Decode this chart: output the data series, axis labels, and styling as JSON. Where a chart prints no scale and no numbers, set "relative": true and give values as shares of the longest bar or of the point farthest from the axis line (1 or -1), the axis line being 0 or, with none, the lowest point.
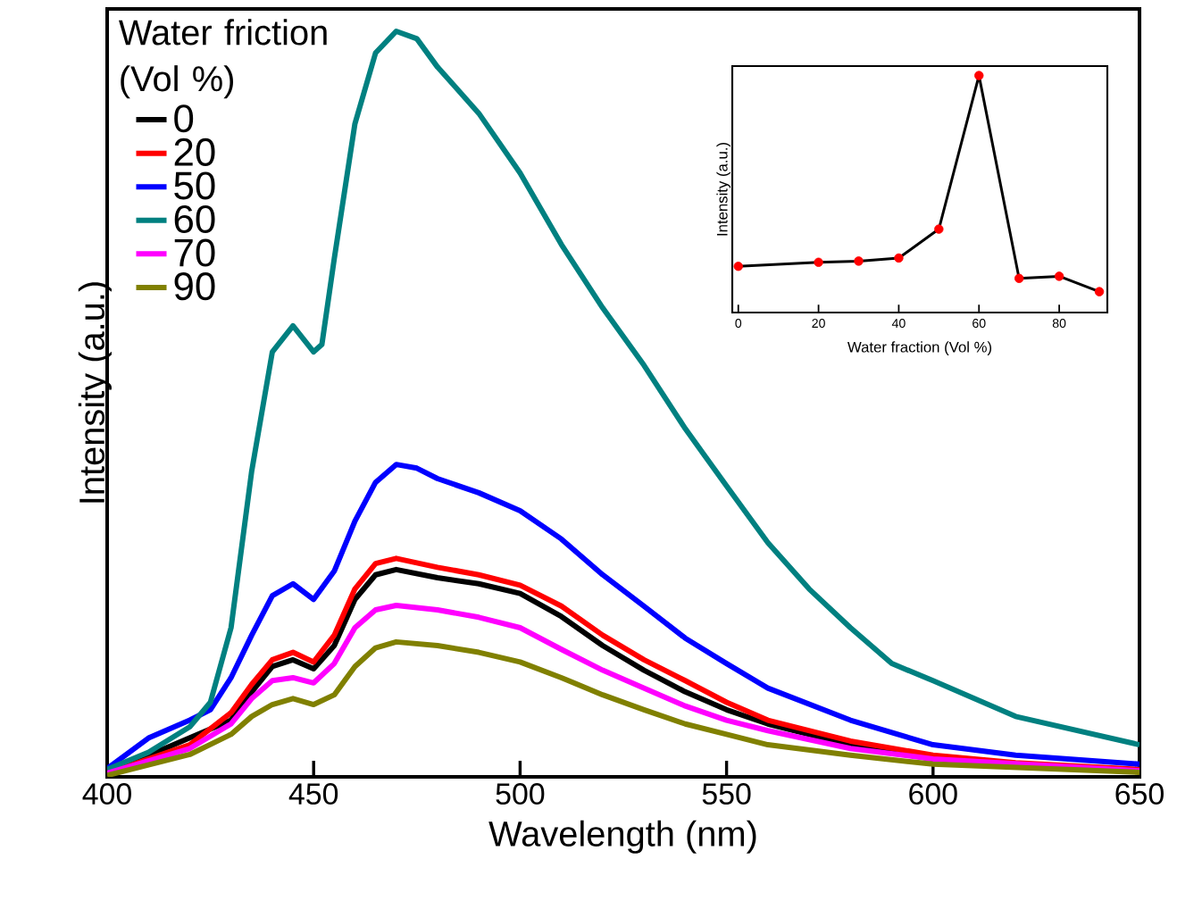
{
  "chart_data": [
    {
      "type": "line",
      "relative": true,
      "xlabel": "Wavelength (nm)",
      "ylabel": "Intensity (a.u.)",
      "legend_title": "Water friction (Vol %)",
      "legend": "top left",
      "xlim": [
        400,
        650
      ],
      "xticks": [
        400,
        450,
        500,
        550,
        600,
        650
      ],
      "series": [
        {
          "name": "0",
          "color": "#000000",
          "x": [
            400,
            420,
            430,
            435,
            440,
            445,
            450,
            455,
            460,
            465,
            470,
            480,
            490,
            500,
            510,
            520,
            530,
            540,
            550,
            560,
            580,
            600,
            620,
            650
          ],
          "values": [
            0.005,
            null,
            0.076,
            0.114,
            0.148,
            0.157,
            0.145,
            0.176,
            0.238,
            0.271,
            0.278,
            0.267,
            0.259,
            0.246,
            0.215,
            0.176,
            0.143,
            0.114,
            0.09,
            0.071,
            0.043,
            0.024,
            null,
            0.008
          ]
        },
        {
          "name": "20",
          "color": "#ff0000",
          "x": [
            400,
            420,
            430,
            435,
            440,
            445,
            450,
            455,
            460,
            465,
            470,
            480,
            490,
            500,
            510,
            520,
            530,
            540,
            550,
            560,
            580,
            600,
            620,
            650
          ],
          "values": [
            0.005,
            0.043,
            0.086,
            0.124,
            0.157,
            0.167,
            0.154,
            0.19,
            0.252,
            0.286,
            0.293,
            0.281,
            0.271,
            0.257,
            0.229,
            0.19,
            0.157,
            0.129,
            0.1,
            0.076,
            0.048,
            0.029,
            0.019,
            0.01
          ]
        },
        {
          "name": "50",
          "color": "#0000ff",
          "x": [
            400,
            410,
            420,
            425,
            430,
            435,
            440,
            445,
            450,
            455,
            460,
            465,
            470,
            475,
            480,
            490,
            500,
            510,
            520,
            530,
            540,
            550,
            560,
            580,
            600,
            620,
            650
          ],
          "values": [
            0.011,
            0.052,
            0.076,
            0.09,
            0.133,
            0.19,
            0.243,
            0.259,
            0.238,
            0.276,
            0.343,
            0.395,
            0.419,
            0.414,
            0.4,
            0.381,
            0.357,
            0.319,
            0.271,
            0.229,
            0.186,
            0.152,
            0.119,
            0.076,
            0.043,
            0.029,
            0.017
          ]
        },
        {
          "name": "60",
          "color": "#008080",
          "x": [
            400,
            410,
            420,
            425,
            430,
            435,
            440,
            445,
            450,
            452,
            455,
            460,
            465,
            470,
            475,
            480,
            490,
            500,
            510,
            520,
            530,
            540,
            550,
            560,
            570,
            580,
            590,
            600,
            620,
            650
          ],
          "values": [
            0.01,
            0.033,
            0.067,
            0.1,
            0.2,
            0.41,
            0.57,
            0.605,
            0.57,
            0.58,
            0.695,
            0.876,
            0.971,
            1,
            0.99,
            0.952,
            0.89,
            0.81,
            0.714,
            0.629,
            0.552,
            0.467,
            0.39,
            0.314,
            0.252,
            0.2,
            0.152,
            0.129,
            0.081,
            0.043
          ]
        },
        {
          "name": "70",
          "color": "#ff00ff",
          "x": [
            400,
            420,
            430,
            435,
            440,
            445,
            450,
            455,
            460,
            465,
            470,
            480,
            490,
            500,
            510,
            520,
            530,
            540,
            550,
            560,
            580,
            600,
            650
          ],
          "values": [
            0.005,
            0.038,
            0.071,
            0.105,
            0.129,
            0.133,
            0.126,
            0.152,
            0.2,
            0.224,
            0.23,
            0.224,
            0.214,
            0.2,
            0.171,
            0.143,
            0.119,
            0.095,
            0.076,
            0.062,
            0.038,
            0.024,
            0.008
          ]
        },
        {
          "name": "90",
          "color": "#808000",
          "x": [
            400,
            420,
            430,
            435,
            440,
            445,
            450,
            455,
            460,
            465,
            470,
            480,
            490,
            500,
            510,
            520,
            530,
            540,
            550,
            560,
            580,
            600,
            650
          ],
          "values": [
            0.002,
            0.03,
            0.057,
            0.081,
            0.097,
            0.105,
            0.097,
            0.11,
            0.148,
            0.173,
            0.181,
            0.176,
            0.167,
            0.154,
            0.133,
            0.11,
            0.09,
            0.071,
            0.057,
            0.043,
            0.029,
            0.017,
            0.006
          ]
        }
      ]
    },
    {
      "type": "line",
      "relative": true,
      "marker": "circle",
      "xlabel": "Water fraction (Vol %)",
      "ylabel": "Intensity (a.u.)",
      "xlim": [
        -1.5,
        92
      ],
      "xticks": [
        0,
        20,
        40,
        60,
        80
      ],
      "series": [
        {
          "color": "#000000",
          "colors": [
            "#ff0000",
            "#ff0000",
            "#ff0000",
            "#ff0000",
            "#ff0000",
            "#ff0000",
            "#ff0000",
            "#ff0000",
            "#ff0000"
          ],
          "x": [
            0,
            20,
            30,
            40,
            50,
            60,
            70,
            80,
            90
          ],
          "values": [
            0.195,
            0.212,
            0.217,
            0.23,
            0.352,
            1,
            0.144,
            0.153,
            0.088
          ]
        }
      ]
    }
  ]
}
